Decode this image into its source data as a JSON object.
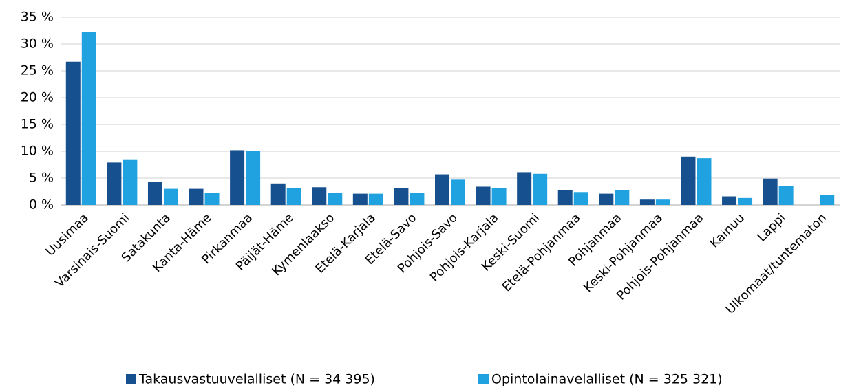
{
  "chart_data": {
    "type": "bar",
    "categories": [
      "Uusimaa",
      "Varsinais-Suomi",
      "Satakunta",
      "Kanta-Häme",
      "Pirkanmaa",
      "Päijät-Häme",
      "Kymenlaakso",
      "Etelä-Karjala",
      "Etelä-Savo",
      "Pohjois-Savo",
      "Pohjois-Karjala",
      "Keski-Suomi",
      "Etelä-Pohjanmaa",
      "Pohjanmaa",
      "Keski-Pohjanmaa",
      "Pohjois-Pohjanmaa",
      "Kainuu",
      "Lappi",
      "Ulkomaat/tuntematon"
    ],
    "series": [
      {
        "name": "Takausvastuuvelalliset (N = 34 395)",
        "color": "#17508f",
        "values": [
          26.7,
          7.9,
          4.3,
          3.0,
          10.2,
          4.0,
          3.3,
          2.1,
          3.1,
          5.7,
          3.4,
          6.1,
          2.7,
          2.1,
          1.0,
          9.0,
          1.6,
          4.9,
          0
        ]
      },
      {
        "name": "Opintolainavelalliset (N = 325 321)",
        "color": "#1fa2df",
        "values": [
          32.3,
          8.5,
          3.0,
          2.3,
          10.0,
          3.2,
          2.3,
          2.1,
          2.3,
          4.7,
          3.1,
          5.8,
          2.4,
          2.7,
          1.0,
          8.7,
          1.3,
          3.5,
          1.9
        ]
      }
    ],
    "ylim": [
      0,
      35
    ],
    "yticks": [
      {
        "value": 0,
        "label": "0 %"
      },
      {
        "value": 5,
        "label": "5 %"
      },
      {
        "value": 10,
        "label": "10 %"
      },
      {
        "value": 15,
        "label": "15 %"
      },
      {
        "value": 20,
        "label": "20 %"
      },
      {
        "value": 25,
        "label": "25 %"
      },
      {
        "value": 30,
        "label": "30 %"
      },
      {
        "value": 35,
        "label": "35 %"
      }
    ],
    "grid": true,
    "legend": "bottom"
  }
}
